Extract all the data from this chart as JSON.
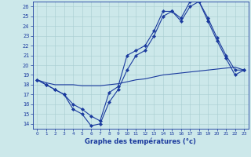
{
  "title": "Graphe des températures (°c)",
  "bg_color": "#cce8ea",
  "line_color": "#1a3a9e",
  "xlim": [
    -0.5,
    23.5
  ],
  "ylim": [
    13.5,
    26.5
  ],
  "xticks": [
    0,
    1,
    2,
    3,
    4,
    5,
    6,
    7,
    8,
    9,
    10,
    11,
    12,
    13,
    14,
    15,
    16,
    17,
    18,
    19,
    20,
    21,
    22,
    23
  ],
  "yticks": [
    14,
    15,
    16,
    17,
    18,
    19,
    20,
    21,
    22,
    23,
    24,
    25,
    26
  ],
  "series1": {
    "x": [
      0,
      1,
      2,
      3,
      4,
      5,
      6,
      7,
      8,
      9,
      10,
      11,
      12,
      13,
      14,
      15,
      16,
      17,
      18,
      19,
      20,
      21,
      22,
      23
    ],
    "y": [
      18.5,
      18,
      17.5,
      17,
      15.5,
      15,
      13.8,
      14.0,
      16.2,
      17.5,
      19.5,
      21.0,
      21.5,
      23.0,
      25.0,
      25.5,
      24.5,
      26.0,
      26.5,
      24.5,
      22.5,
      20.7,
      19.0,
      19.5
    ]
  },
  "series2": {
    "x": [
      0,
      1,
      2,
      3,
      4,
      5,
      6,
      7,
      8,
      9,
      10,
      11,
      12,
      13,
      14,
      15,
      16,
      17,
      18,
      19,
      20,
      21,
      22,
      23
    ],
    "y": [
      18.5,
      18,
      17.5,
      17,
      16.0,
      15.5,
      14.8,
      14.3,
      17.2,
      17.8,
      21.0,
      21.5,
      22.0,
      23.5,
      25.5,
      25.5,
      24.8,
      26.5,
      26.5,
      24.8,
      22.8,
      21.0,
      19.5,
      19.5
    ]
  },
  "series3": {
    "x": [
      0,
      1,
      2,
      3,
      4,
      5,
      6,
      7,
      8,
      9,
      10,
      11,
      12,
      13,
      14,
      15,
      16,
      17,
      18,
      19,
      20,
      21,
      22,
      23
    ],
    "y": [
      18.5,
      18.2,
      18.0,
      18.0,
      18.0,
      17.9,
      17.9,
      17.9,
      18.0,
      18.1,
      18.3,
      18.5,
      18.6,
      18.8,
      19.0,
      19.1,
      19.2,
      19.3,
      19.4,
      19.5,
      19.6,
      19.7,
      19.8,
      19.5
    ]
  }
}
